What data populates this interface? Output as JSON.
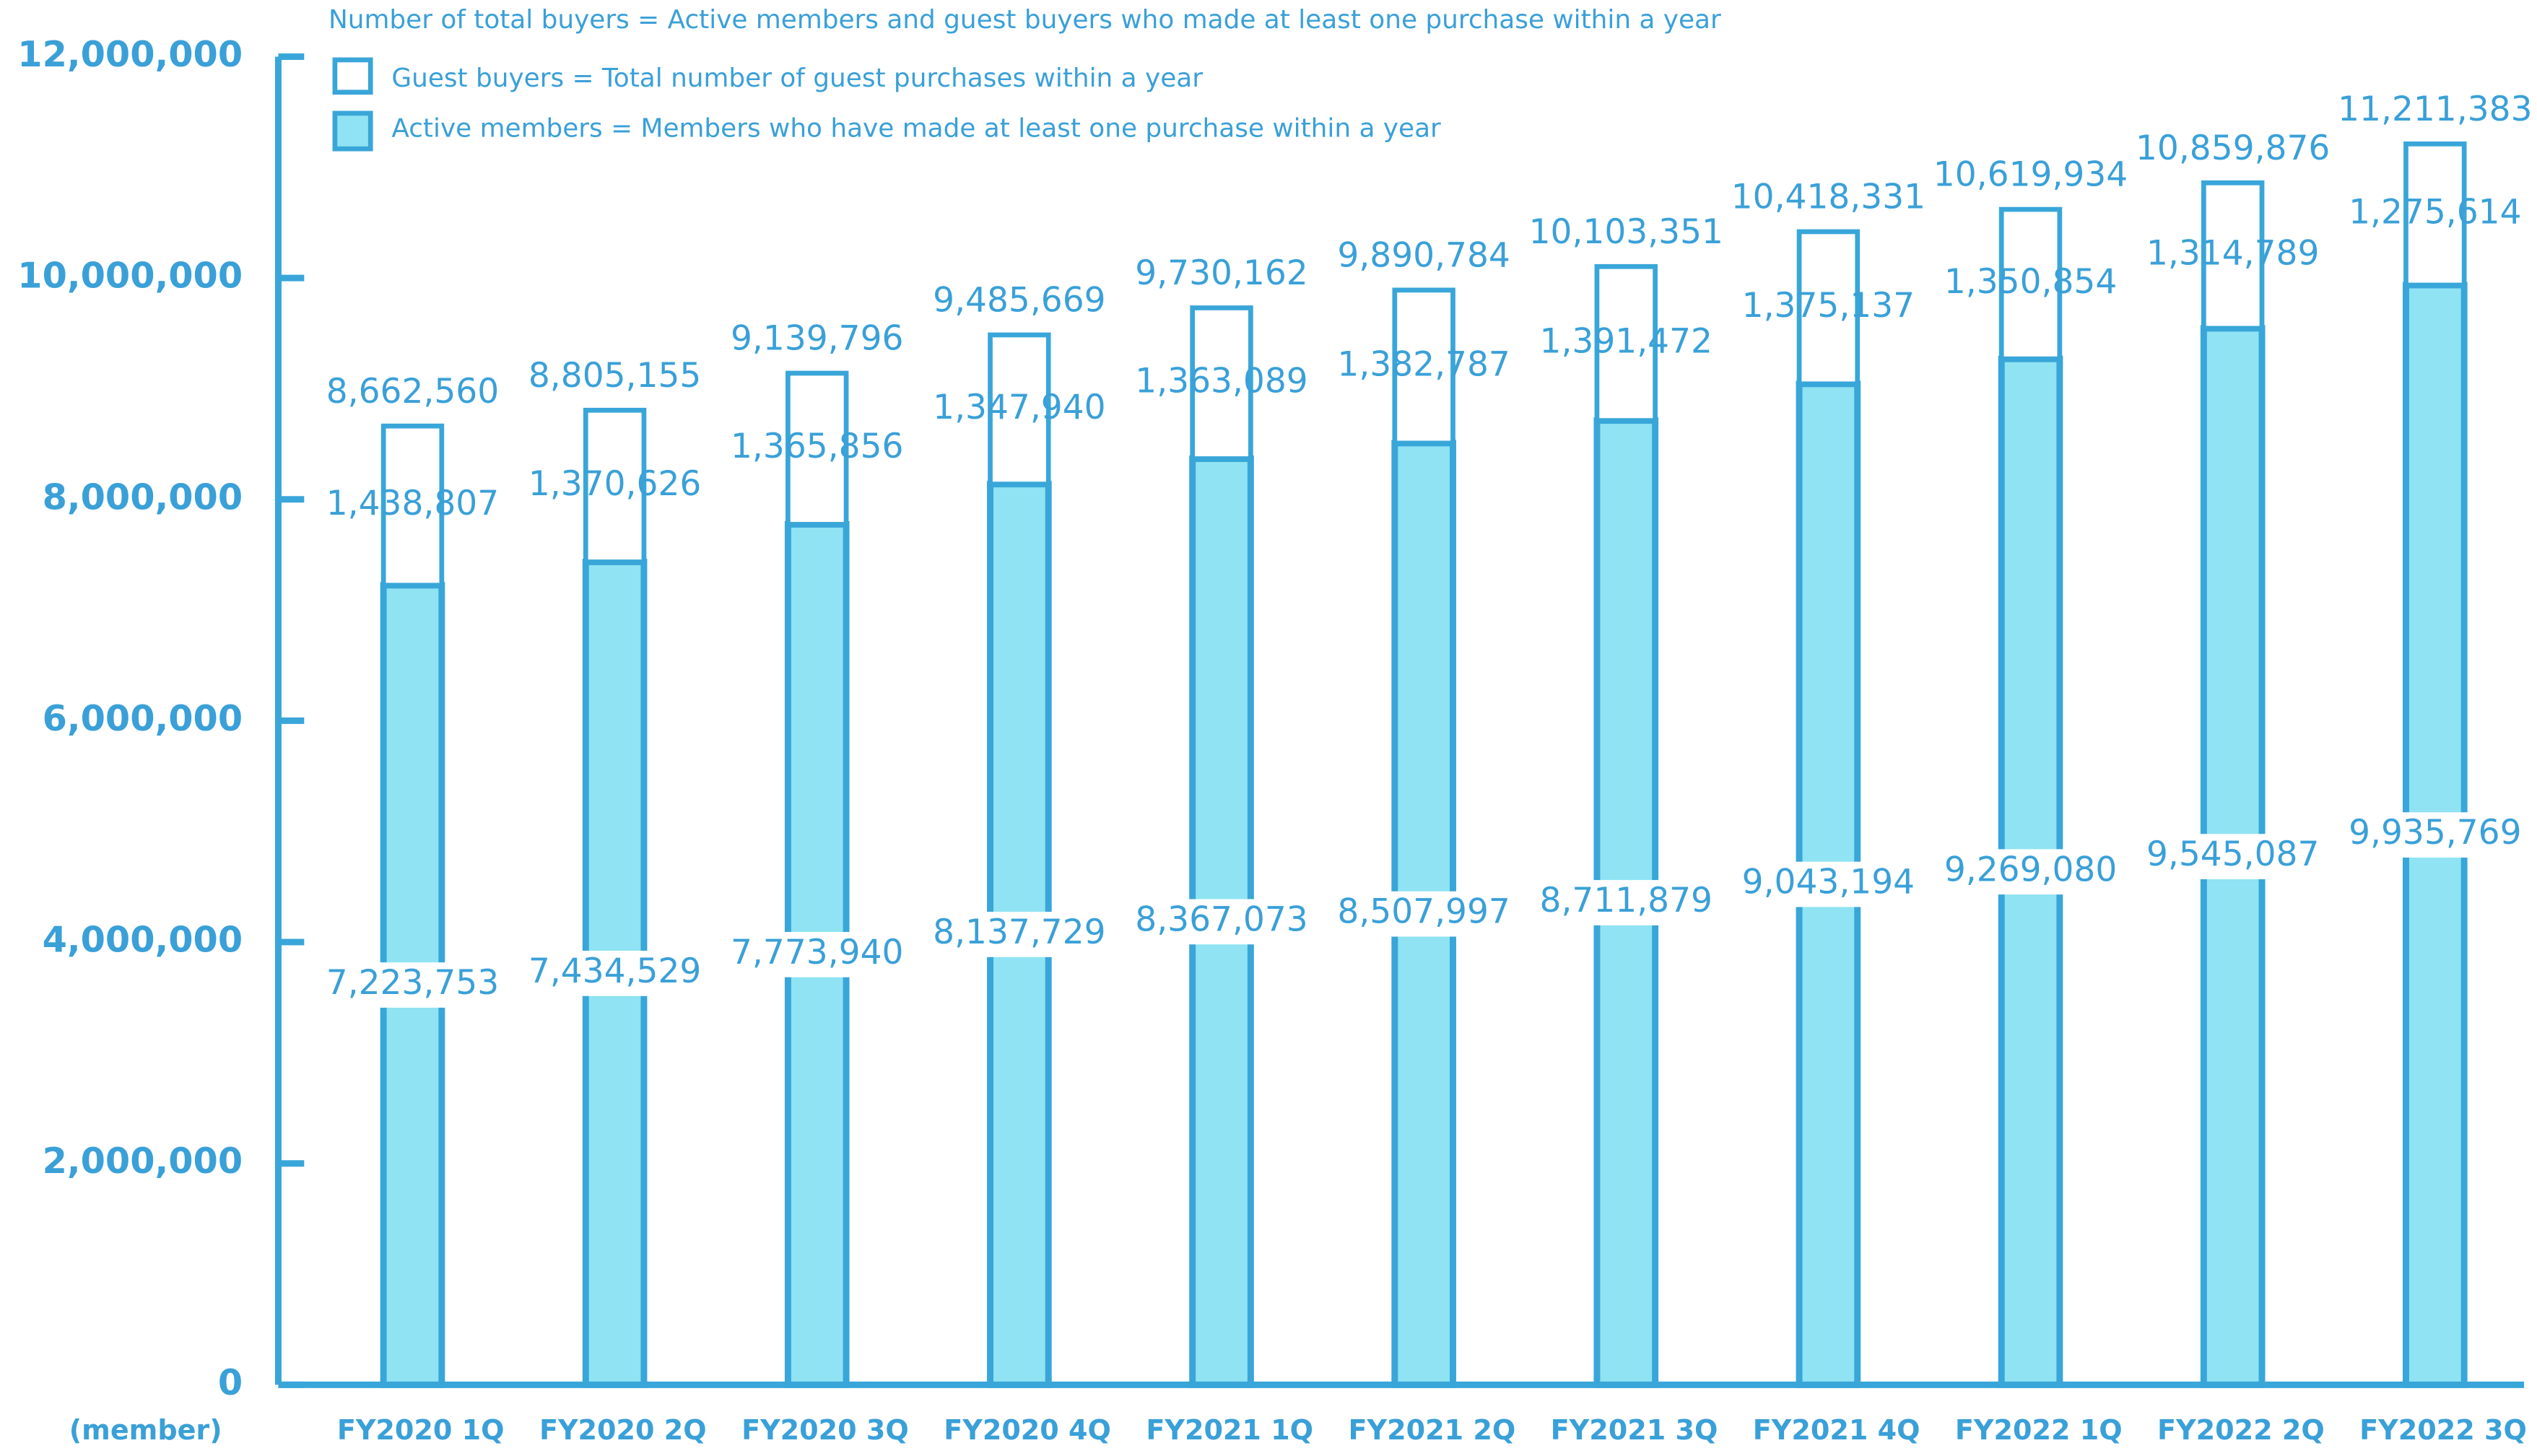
{
  "chart_data": {
    "type": "stacked_bar",
    "note": "Number of total buyers = Active members and guest buyers who made at least one purchase within a year",
    "y_label": "(member)",
    "categories": [
      "FY2020 1Q",
      "FY2020 2Q",
      "FY2020 3Q",
      "FY2020 4Q",
      "FY2021 1Q",
      "FY2021 2Q",
      "FY2021 3Q",
      "FY2021 4Q",
      "FY2022 1Q",
      "FY2022 2Q",
      "FY2022 3Q"
    ],
    "series": [
      {
        "name": "Active members = Members who have made at least one purchase within a year",
        "color": "#8fe3f2",
        "values": [
          7223753,
          7434529,
          7773940,
          8137729,
          8367073,
          8507997,
          8711879,
          9043194,
          9269080,
          9545087,
          9935769
        ],
        "value_labels": [
          "7,223,753",
          "7,434,529",
          "7,773,940",
          "8,137,729",
          "8,367,073",
          "8,507,997",
          "8,711,879",
          "9,043,194",
          "9,269,080",
          "9,545,087",
          "9,935,769"
        ]
      },
      {
        "name": "Guest buyers = Total number of guest purchases within a year",
        "color": "#ffffff",
        "values": [
          1438807,
          1370626,
          1365856,
          1347940,
          1363089,
          1382787,
          1391472,
          1375137,
          1350854,
          1314789,
          1275614
        ],
        "value_labels": [
          "1,438,807",
          "1,370,626",
          "1,365,856",
          "1,347,940",
          "1,363,089",
          "1,382,787",
          "1,391,472",
          "1,375,137",
          "1,350,854",
          "1,314,789",
          "1,275,614"
        ]
      }
    ],
    "totals": [
      8662560,
      8805155,
      9139796,
      9485669,
      9730162,
      9890784,
      10103351,
      10418331,
      10619934,
      10859876,
      11211383
    ],
    "total_labels": [
      "8,662,560",
      "8,805,155",
      "9,139,796",
      "9,485,669",
      "9,730,162",
      "9,890,784",
      "10,103,351",
      "10,418,331",
      "10,619,934",
      "10,859,876",
      "11,211,383"
    ],
    "edge_color": "#39a6d9",
    "ylim": [
      0,
      12000000
    ],
    "yticks": [
      {
        "value": 0,
        "label": "0"
      },
      {
        "value": 2000000,
        "label": "2,000,000"
      },
      {
        "value": 4000000,
        "label": "4,000,000"
      },
      {
        "value": 6000000,
        "label": "6,000,000"
      },
      {
        "value": 8000000,
        "label": "8,000,000"
      },
      {
        "value": 10000000,
        "label": "10,000,000"
      },
      {
        "value": 12000000,
        "label": "12,000,000"
      }
    ]
  }
}
